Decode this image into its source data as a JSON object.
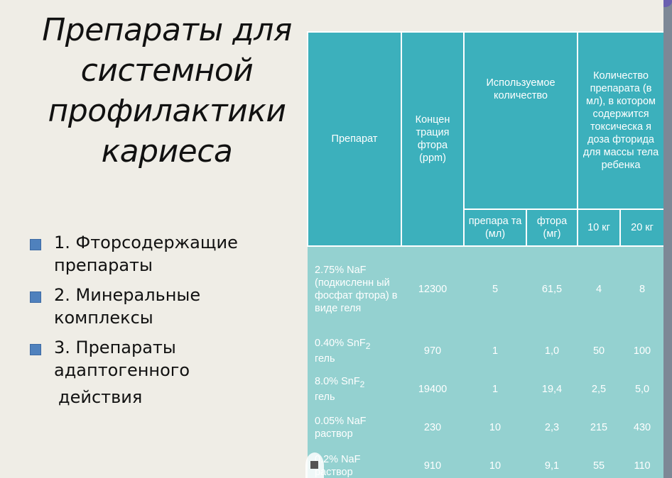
{
  "slide": {
    "title_lines": [
      "Препараты для",
      "системной",
      "профилактики",
      "кариеса"
    ],
    "bullets": [
      {
        "lines": [
          "1. Фторсодержащие",
          "препараты"
        ]
      },
      {
        "lines": [
          "2. Минеральные",
          "комплексы"
        ]
      },
      {
        "lines": [
          "3. Препараты",
          "адаптогенного",
          "действия"
        ]
      }
    ]
  },
  "table": {
    "headers": {
      "preparation": "Препарат",
      "concentration": "Концен трация фтора (ppm)",
      "used_amount": "Используемое количество",
      "toxic_amount": "Количество препарата (в мл), в котором содержится токсическа я доза фторида для массы тела ребенка",
      "sub_prep": "препара та (мл)",
      "sub_fluor": "фтора (мг)",
      "sub_10": "10 кг",
      "sub_20": "20 кг"
    },
    "rows": [
      {
        "name": "2.75% NaF (подкисленн ый фосфат фтора) в виде геля",
        "conc": "12300",
        "prep": "5",
        "fluor": "61,5",
        "kg10": "4",
        "kg20": "8"
      },
      {
        "name_main": "0.40% SnF",
        "name_sub": "2",
        "name_tail": "гель",
        "conc": "970",
        "prep": "1",
        "fluor": "1,0",
        "kg10": "50",
        "kg20": "100"
      },
      {
        "name_main": "8.0% SnF",
        "name_sub": "2",
        "name_tail": "гель",
        "conc": "19400",
        "prep": "1",
        "fluor": "19,4",
        "kg10": "2,5",
        "kg20": "5,0"
      },
      {
        "name": "0.05% NaF раствор",
        "conc": "230",
        "prep": "10",
        "fluor": "2,3",
        "kg10": "215",
        "kg20": "430"
      },
      {
        "name": "0.2% NaF раствор",
        "conc": "910",
        "prep": "10",
        "fluor": "9,1",
        "kg10": "55",
        "kg20": "110"
      }
    ]
  },
  "colors": {
    "header_bg": "#3cb0bc",
    "body_bg": "#94d1d0",
    "slide_bg": "#efede6",
    "bullet": "#4f81bd"
  }
}
